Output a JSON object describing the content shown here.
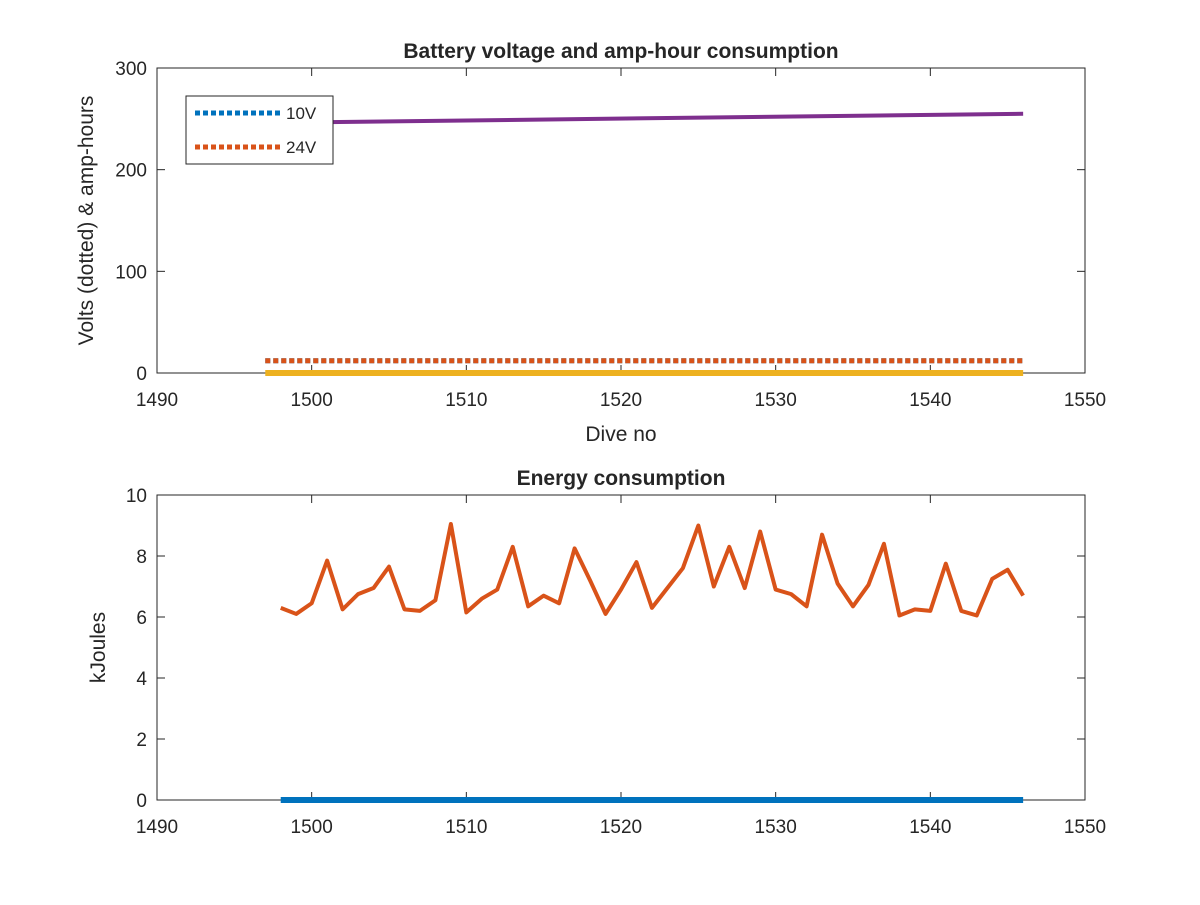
{
  "chart_data": [
    {
      "type": "line",
      "title": "Battery voltage and amp-hour consumption",
      "xlabel": "Dive no",
      "ylabel": "Volts (dotted) & amp-hours",
      "xlim": [
        1490,
        1550
      ],
      "ylim": [
        0,
        300
      ],
      "xticks": [
        "1490",
        "1500",
        "1510",
        "1520",
        "1530",
        "1540",
        "1550"
      ],
      "yticks": [
        "0",
        "100",
        "200",
        "300"
      ],
      "legend": {
        "placement": "top-left",
        "entries": [
          "10V",
          "24V"
        ]
      },
      "series": [
        {
          "name": "10V",
          "style": "dotted",
          "color": "#0072BD",
          "x": [
            1497,
            1546
          ],
          "y": [
            12,
            12
          ]
        },
        {
          "name": "24V",
          "style": "dotted",
          "color": "#D95319",
          "x": [
            1497,
            1546
          ],
          "y": [
            12,
            12
          ]
        },
        {
          "style": "solid",
          "color": "#EDB120",
          "x": [
            1497,
            1546
          ],
          "y": [
            0,
            0
          ]
        },
        {
          "style": "solid",
          "color": "#7E2F8E",
          "x": [
            1497,
            1546
          ],
          "y": [
            246,
            255
          ]
        }
      ]
    },
    {
      "type": "line",
      "title": "Energy consumption",
      "xlabel": "",
      "ylabel": "kJoules",
      "xlim": [
        1490,
        1550
      ],
      "ylim": [
        0,
        10
      ],
      "xticks": [
        "1490",
        "1500",
        "1510",
        "1520",
        "1530",
        "1540",
        "1550"
      ],
      "yticks": [
        "0",
        "2",
        "4",
        "6",
        "8",
        "10"
      ],
      "series": [
        {
          "style": "solid",
          "color": "#0072BD",
          "x": [
            1498,
            1546
          ],
          "y": [
            0,
            0
          ]
        },
        {
          "style": "solid",
          "color": "#D95319",
          "x": [
            1498,
            1499,
            1500,
            1501,
            1502,
            1503,
            1504,
            1505,
            1506,
            1507,
            1508,
            1509,
            1510,
            1511,
            1512,
            1513,
            1514,
            1515,
            1516,
            1517,
            1518,
            1519,
            1520,
            1521,
            1522,
            1523,
            1524,
            1525,
            1526,
            1527,
            1528,
            1529,
            1530,
            1531,
            1532,
            1533,
            1534,
            1535,
            1536,
            1537,
            1538,
            1539,
            1540,
            1541,
            1542,
            1543,
            1544,
            1545,
            1546
          ],
          "y": [
            6.3,
            6.1,
            6.45,
            7.85,
            6.25,
            6.75,
            6.95,
            7.65,
            6.25,
            6.2,
            6.55,
            9.05,
            6.15,
            6.6,
            6.9,
            8.3,
            6.35,
            6.7,
            6.45,
            8.25,
            7.2,
            6.1,
            6.9,
            7.8,
            6.3,
            6.95,
            7.6,
            9.0,
            7.0,
            8.3,
            6.95,
            8.8,
            6.9,
            6.75,
            6.35,
            8.7,
            7.1,
            6.35,
            7.05,
            8.4,
            6.05,
            6.25,
            6.2,
            7.75,
            6.2,
            6.05,
            7.25,
            7.55,
            6.7
          ]
        }
      ]
    }
  ]
}
